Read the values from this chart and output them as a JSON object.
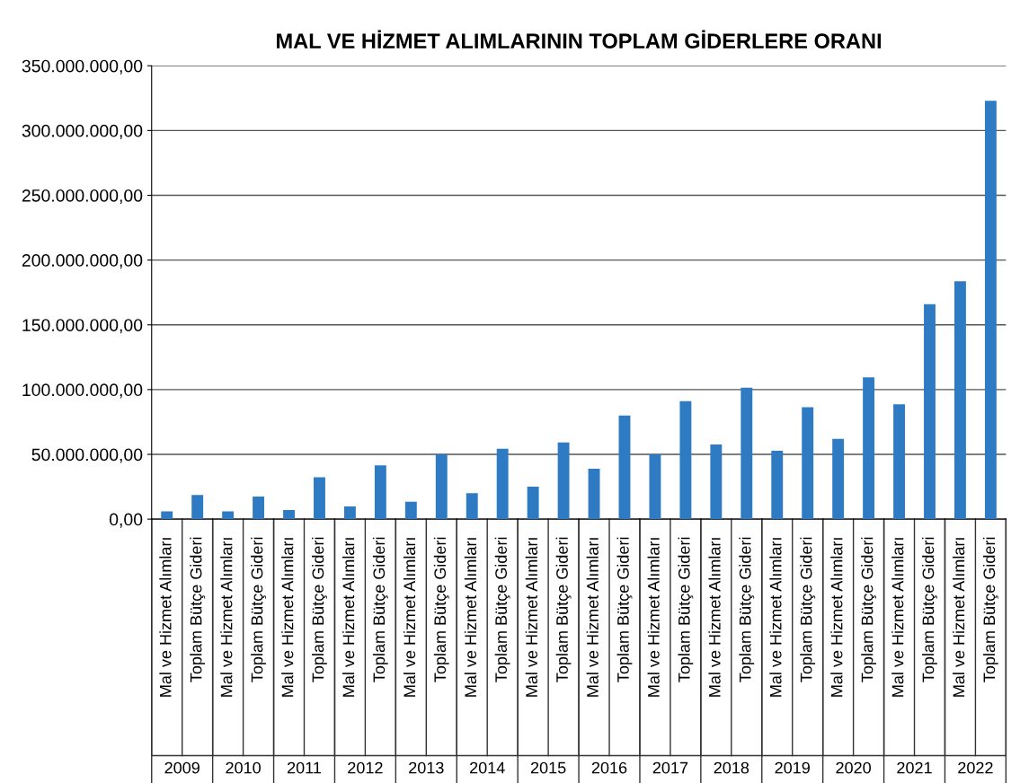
{
  "chart_data": {
    "type": "bar",
    "title": "MAL VE HİZMET ALIMLARININ TOPLAM GİDERLERE ORANI",
    "categories": [
      "Mal ve Hizmet Alımları",
      "Toplam Bütçe Gideri",
      "Mal ve Hizmet Alımları",
      "Toplam Bütçe Gideri",
      "Mal ve Hizmet Alımları",
      "Toplam Bütçe Gideri",
      "Mal ve Hizmet Alımları",
      "Toplam Bütçe Gideri",
      "Mal ve Hizmet Alımları",
      "Toplam Bütçe Gideri",
      "Mal ve Hizmet Alımları",
      "Toplam Bütçe Gideri",
      "Mal ve Hizmet Alımları",
      "Toplam Bütçe Gideri",
      "Mal ve Hizmet Alımları",
      "Toplam Bütçe Gideri",
      "Mal ve Hizmet Alımları",
      "Toplam Bütçe Gideri",
      "Mal ve Hizmet Alımları",
      "Toplam Bütçe Gideri",
      "Mal ve Hizmet Alımları",
      "Toplam Bütçe Gideri",
      "Mal ve Hizmet Alımları",
      "Toplam Bütçe Gideri",
      "Mal ve Hizmet Alımları",
      "Toplam Bütçe Gideri",
      "Mal ve Hizmet Alımları",
      "Toplam Bütçe Gideri"
    ],
    "values": [
      6000000,
      18700000,
      6000000,
      17500000,
      7100000,
      32300000,
      9800000,
      41600000,
      13400000,
      50200000,
      20000000,
      54300000,
      25000000,
      59200000,
      38900000,
      80000000,
      50000000,
      91000000,
      57600000,
      101400000,
      52800000,
      86400000,
      62000000,
      109400000,
      88700000,
      165900000,
      183600000,
      323000000
    ],
    "color": "#2e7bc4",
    "annotations": [
      "2009",
      "2010",
      "2011",
      "2012",
      "2013",
      "2014",
      "2015",
      "2016",
      "2017",
      "2018",
      "2019",
      "2020",
      "2021",
      "2022"
    ],
    "ylim": [
      0,
      350000000
    ],
    "yticks": [
      {
        "value": 0,
        "label": "0,00"
      },
      {
        "value": 50000000,
        "label": "50.000.000,00"
      },
      {
        "value": 100000000,
        "label": "100.000.000,00"
      },
      {
        "value": 150000000,
        "label": "150.000.000,00"
      },
      {
        "value": 200000000,
        "label": "200.000.000,00"
      },
      {
        "value": 250000000,
        "label": "250.000.000,00"
      },
      {
        "value": 300000000,
        "label": "300.000.000,00"
      },
      {
        "value": 350000000,
        "label": "350.000.000,00"
      }
    ],
    "grid": "y"
  }
}
